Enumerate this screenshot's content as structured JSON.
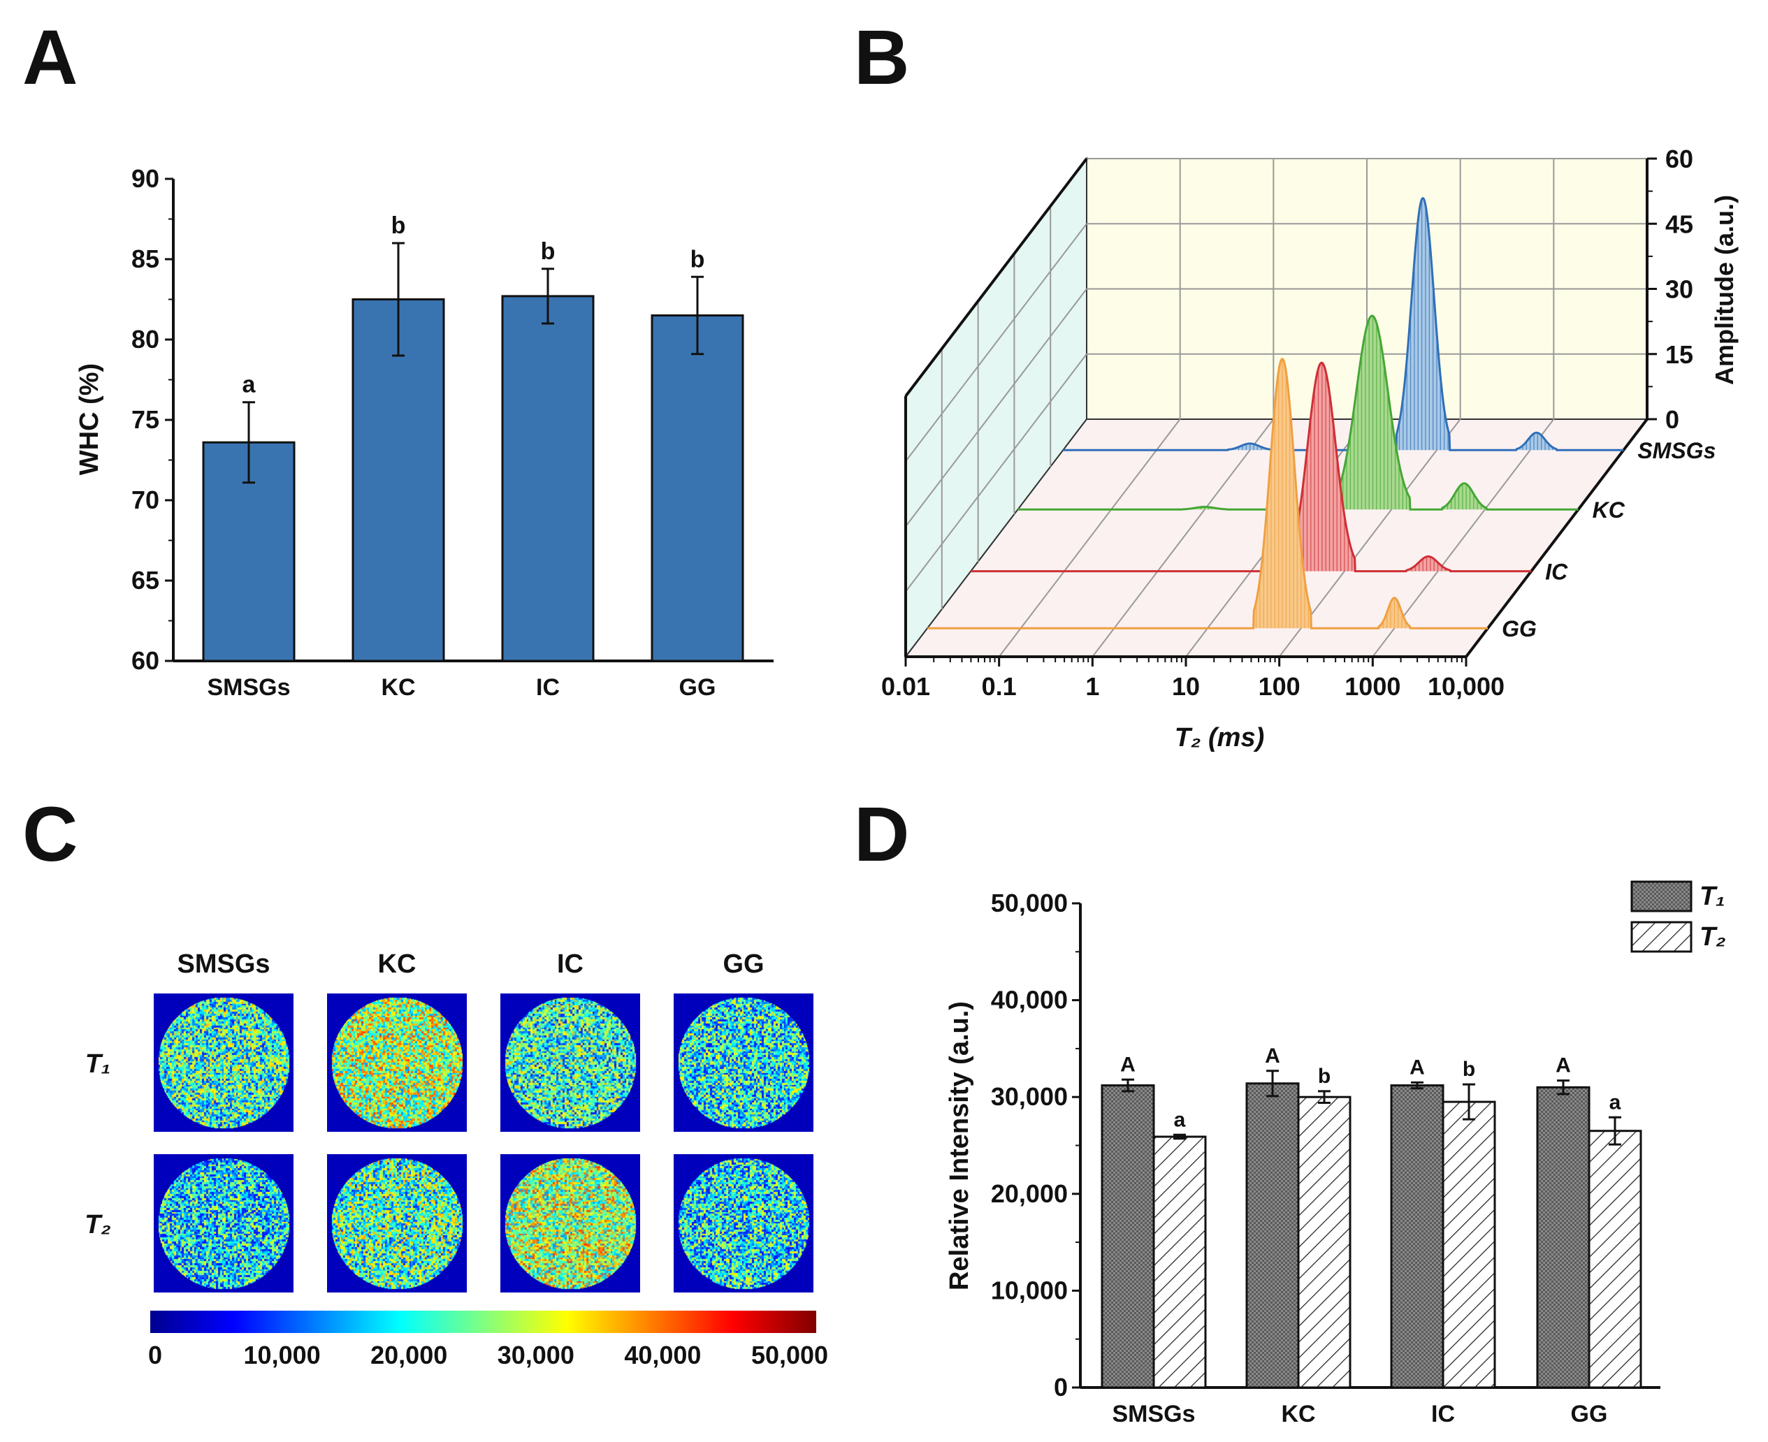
{
  "panels": {
    "a": "A",
    "b": "B",
    "c": "C",
    "d": "D"
  },
  "chart_data": [
    {
      "panel": "A",
      "type": "bar",
      "title": "",
      "xlabel": "",
      "ylabel": "WHC (%)",
      "ylim": [
        60,
        90
      ],
      "yticks": [
        60,
        65,
        70,
        75,
        80,
        85,
        90
      ],
      "categories": [
        "SMSGs",
        "KC",
        "IC",
        "GG"
      ],
      "values": [
        73.6,
        82.5,
        82.7,
        81.5
      ],
      "errors": [
        2.5,
        3.5,
        1.7,
        2.4
      ],
      "letters": [
        "a",
        "b",
        "b",
        "b"
      ],
      "bar_color": "#3a74b0"
    },
    {
      "panel": "B",
      "type": "line",
      "subtype": "3d-waterfall",
      "xlabel": "T₂ (ms)",
      "ylabel": "Amplitude (a.u.)",
      "x_scale": "log",
      "xlim": [
        0.01,
        10000
      ],
      "xtick_labels": [
        "0.01",
        "0.1",
        "1",
        "10",
        "100",
        "1000",
        "10,000"
      ],
      "ylim": [
        0,
        60
      ],
      "yticks": [
        0,
        15,
        30,
        45,
        60
      ],
      "series": [
        {
          "name": "SMSGs",
          "color": "#2f6fb8",
          "fill": "#a9c9e6",
          "peaks": [
            {
              "t2": 1.0,
              "amp": 1.5,
              "sigma": 0.1
            },
            {
              "t2": 71,
              "amp": 58,
              "sigma": 0.12
            },
            {
              "t2": 1170,
              "amp": 4,
              "sigma": 0.09
            }
          ]
        },
        {
          "name": "KC",
          "color": "#45a735",
          "fill": "#a9d98f",
          "peaks": [
            {
              "t2": 1.0,
              "amp": 0.6,
              "sigma": 0.1
            },
            {
              "t2": 62,
              "amp": 44.6,
              "sigma": 0.17
            },
            {
              "t2": 600,
              "amp": 6,
              "sigma": 0.1
            }
          ]
        },
        {
          "name": "IC",
          "color": "#cf2f35",
          "fill": "#f2a3a3",
          "peaks": [
            {
              "t2": 57,
              "amp": 48,
              "sigma": 0.15
            },
            {
              "t2": 790,
              "amp": 3.4,
              "sigma": 0.1
            }
          ]
        },
        {
          "name": "GG",
          "color": "#f0a040",
          "fill": "#f8c888",
          "peaks": [
            {
              "t2": 63,
              "amp": 62,
              "sigma": 0.13
            },
            {
              "t2": 1000,
              "amp": 7,
              "sigma": 0.07
            }
          ]
        }
      ]
    },
    {
      "panel": "C",
      "type": "heatmap",
      "columns": [
        "SMSGs",
        "KC",
        "IC",
        "GG"
      ],
      "rows": [
        "T₁",
        "T₂"
      ],
      "mean_intensity": [
        [
          21000,
          27000,
          21000,
          19000
        ],
        [
          17500,
          22000,
          27000,
          18500
        ]
      ],
      "colorbar_range": [
        0,
        50000
      ],
      "colorbar_tick_labels": [
        "0",
        "10,000",
        "20,000",
        "30,000",
        "40,000",
        "50,000"
      ]
    },
    {
      "panel": "D",
      "type": "bar",
      "xlabel": "",
      "ylabel": "Relative Intensity (a.u.)",
      "ylim": [
        0,
        50000
      ],
      "yticks": [
        0,
        10000,
        20000,
        30000,
        40000,
        50000
      ],
      "ytick_labels": [
        "0",
        "10,000",
        "20,000",
        "30,000",
        "40,000",
        "50,000"
      ],
      "categories": [
        "SMSGs",
        "KC",
        "IC",
        "GG"
      ],
      "legend_position": "top-right",
      "series": [
        {
          "name": "T₁",
          "pattern": "crosshatch",
          "values": [
            31200,
            31400,
            31200,
            31000
          ],
          "errors": [
            600,
            1300,
            300,
            700
          ],
          "letters": [
            "A",
            "A",
            "A",
            "A"
          ]
        },
        {
          "name": "T₂",
          "pattern": "diagonal",
          "values": [
            25900,
            30000,
            29500,
            26500
          ],
          "errors": [
            200,
            600,
            1800,
            1400
          ],
          "letters": [
            "a",
            "b",
            "b",
            "a"
          ]
        }
      ]
    }
  ]
}
